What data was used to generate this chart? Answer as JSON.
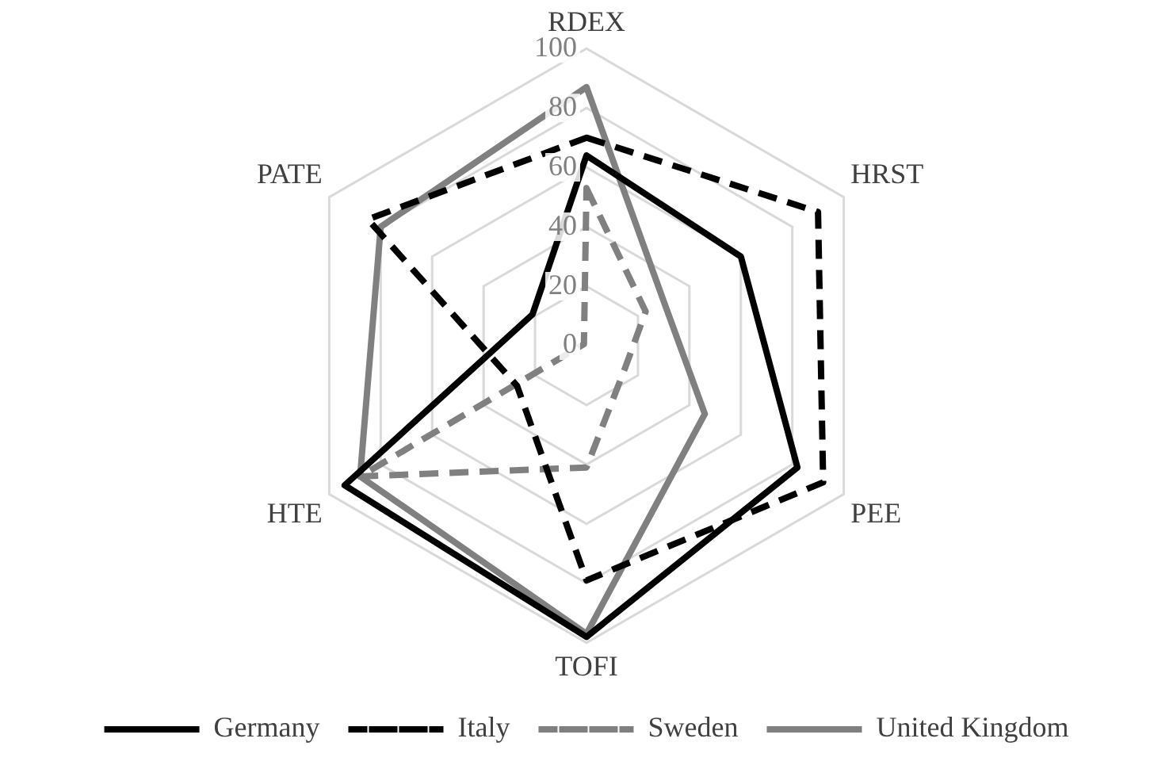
{
  "chart_data": {
    "type": "radar",
    "categories": [
      "RDEX",
      "HRST",
      "PEE",
      "TOFI",
      "HTE",
      "PATE"
    ],
    "series": [
      {
        "name": "Germany",
        "color": "#000000",
        "line_style": "solid",
        "values": [
          64,
          60,
          82,
          98,
          94,
          21
        ]
      },
      {
        "name": "Italy",
        "color": "#000000",
        "line_style": "dashed",
        "values": [
          70,
          90,
          92,
          79,
          27,
          85
        ]
      },
      {
        "name": "Sweden",
        "color": "#808080",
        "line_style": "dashed",
        "values": [
          53,
          23,
          15,
          41,
          88,
          1
        ]
      },
      {
        "name": "United Kingdom",
        "color": "#808080",
        "line_style": "solid",
        "values": [
          87,
          30,
          46,
          97,
          88,
          80
        ]
      }
    ],
    "ylim": [
      0,
      100
    ],
    "yticks": [
      0,
      20,
      40,
      60,
      80,
      100
    ],
    "grid": true,
    "legend": "bottom",
    "marker": "none"
  }
}
